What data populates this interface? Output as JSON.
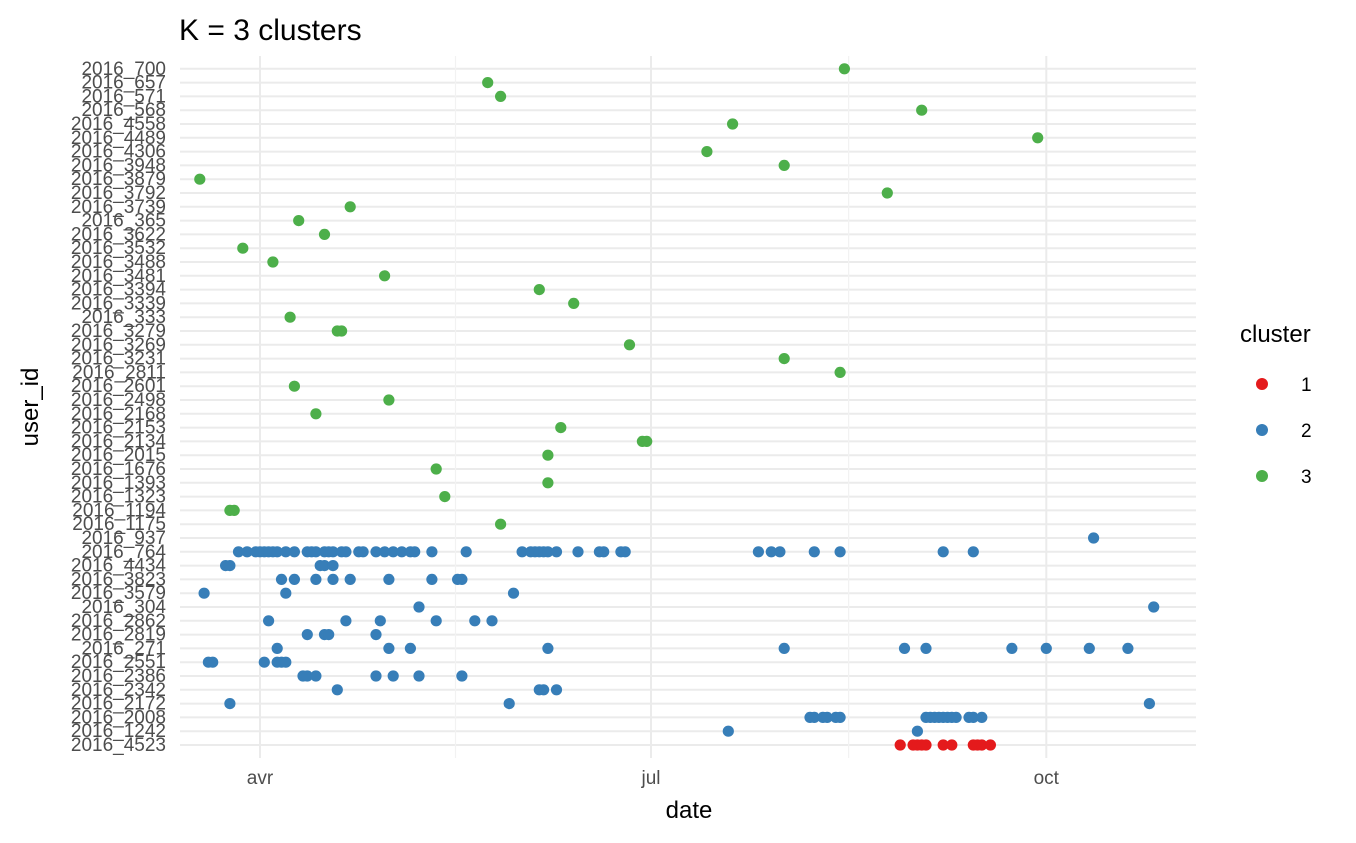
{
  "chart_data": {
    "type": "scatter",
    "title": "K = 3 clusters",
    "xlabel": "date",
    "ylabel": "user_id",
    "grid": true,
    "legend_position": "right",
    "legend_title": "cluster",
    "x_ticks": [
      {
        "date": "2016-04-01",
        "label": "avr"
      },
      {
        "date": "2016-07-01",
        "label": "jul"
      },
      {
        "date": "2016-10-01",
        "label": "oct"
      }
    ],
    "xlim": [
      "2016-03-15",
      "2016-10-30"
    ],
    "categories": [
      "2016_4523",
      "2016_1242",
      "2016_2008",
      "2016_2172",
      "2016_2342",
      "2016_2386",
      "2016_2551",
      "2016_271",
      "2016_2819",
      "2016_2862",
      "2016_304",
      "2016_3579",
      "2016_3823",
      "2016_4434",
      "2016_764",
      "2016_937",
      "2016_1175",
      "2016_1194",
      "2016_1323",
      "2016_1393",
      "2016_1676",
      "2016_2015",
      "2016_2134",
      "2016_2153",
      "2016_2168",
      "2016_2498",
      "2016_2601",
      "2016_2811",
      "2016_3231",
      "2016_3269",
      "2016_3279",
      "2016_333",
      "2016_3339",
      "2016_3394",
      "2016_3481",
      "2016_3488",
      "2016_3532",
      "2016_3622",
      "2016_365",
      "2016_3739",
      "2016_3792",
      "2016_3879",
      "2016_3948",
      "2016_4306",
      "2016_4489",
      "2016_4558",
      "2016_568",
      "2016_571",
      "2016_657",
      "2016_700"
    ],
    "series": [
      {
        "name": "1",
        "color": "#E41A1C",
        "points": [
          {
            "x": "2016-08-28",
            "y": "2016_4523"
          },
          {
            "x": "2016-08-31",
            "y": "2016_4523"
          },
          {
            "x": "2016-09-01",
            "y": "2016_4523"
          },
          {
            "x": "2016-09-02",
            "y": "2016_4523"
          },
          {
            "x": "2016-09-03",
            "y": "2016_4523"
          },
          {
            "x": "2016-09-07",
            "y": "2016_4523"
          },
          {
            "x": "2016-09-09",
            "y": "2016_4523"
          },
          {
            "x": "2016-09-14",
            "y": "2016_4523"
          },
          {
            "x": "2016-09-15",
            "y": "2016_4523"
          },
          {
            "x": "2016-09-16",
            "y": "2016_4523"
          },
          {
            "x": "2016-09-18",
            "y": "2016_4523"
          }
        ]
      },
      {
        "name": "2",
        "color": "#377EB8",
        "points": [
          {
            "x": "2016-07-19",
            "y": "2016_1242"
          },
          {
            "x": "2016-09-01",
            "y": "2016_1242"
          },
          {
            "x": "2016-08-07",
            "y": "2016_2008"
          },
          {
            "x": "2016-08-08",
            "y": "2016_2008"
          },
          {
            "x": "2016-08-10",
            "y": "2016_2008"
          },
          {
            "x": "2016-08-11",
            "y": "2016_2008"
          },
          {
            "x": "2016-08-13",
            "y": "2016_2008"
          },
          {
            "x": "2016-08-14",
            "y": "2016_2008"
          },
          {
            "x": "2016-09-03",
            "y": "2016_2008"
          },
          {
            "x": "2016-09-04",
            "y": "2016_2008"
          },
          {
            "x": "2016-09-05",
            "y": "2016_2008"
          },
          {
            "x": "2016-09-06",
            "y": "2016_2008"
          },
          {
            "x": "2016-09-07",
            "y": "2016_2008"
          },
          {
            "x": "2016-09-08",
            "y": "2016_2008"
          },
          {
            "x": "2016-09-09",
            "y": "2016_2008"
          },
          {
            "x": "2016-09-10",
            "y": "2016_2008"
          },
          {
            "x": "2016-09-13",
            "y": "2016_2008"
          },
          {
            "x": "2016-09-14",
            "y": "2016_2008"
          },
          {
            "x": "2016-09-16",
            "y": "2016_2008"
          },
          {
            "x": "2016-03-25",
            "y": "2016_2172"
          },
          {
            "x": "2016-05-29",
            "y": "2016_2172"
          },
          {
            "x": "2016-10-25",
            "y": "2016_2172"
          },
          {
            "x": "2016-04-19",
            "y": "2016_2342"
          },
          {
            "x": "2016-06-05",
            "y": "2016_2342"
          },
          {
            "x": "2016-06-06",
            "y": "2016_2342"
          },
          {
            "x": "2016-06-09",
            "y": "2016_2342"
          },
          {
            "x": "2016-04-11",
            "y": "2016_2386"
          },
          {
            "x": "2016-04-12",
            "y": "2016_2386"
          },
          {
            "x": "2016-04-14",
            "y": "2016_2386"
          },
          {
            "x": "2016-04-28",
            "y": "2016_2386"
          },
          {
            "x": "2016-05-02",
            "y": "2016_2386"
          },
          {
            "x": "2016-05-08",
            "y": "2016_2386"
          },
          {
            "x": "2016-05-18",
            "y": "2016_2386"
          },
          {
            "x": "2016-03-20",
            "y": "2016_2551"
          },
          {
            "x": "2016-03-21",
            "y": "2016_2551"
          },
          {
            "x": "2016-04-02",
            "y": "2016_2551"
          },
          {
            "x": "2016-04-05",
            "y": "2016_2551"
          },
          {
            "x": "2016-04-06",
            "y": "2016_2551"
          },
          {
            "x": "2016-04-07",
            "y": "2016_2551"
          },
          {
            "x": "2016-04-05",
            "y": "2016_271"
          },
          {
            "x": "2016-05-01",
            "y": "2016_271"
          },
          {
            "x": "2016-05-06",
            "y": "2016_271"
          },
          {
            "x": "2016-06-07",
            "y": "2016_271"
          },
          {
            "x": "2016-08-01",
            "y": "2016_271"
          },
          {
            "x": "2016-08-29",
            "y": "2016_271"
          },
          {
            "x": "2016-09-03",
            "y": "2016_271"
          },
          {
            "x": "2016-09-23",
            "y": "2016_271"
          },
          {
            "x": "2016-10-01",
            "y": "2016_271"
          },
          {
            "x": "2016-10-11",
            "y": "2016_271"
          },
          {
            "x": "2016-10-20",
            "y": "2016_271"
          },
          {
            "x": "2016-04-12",
            "y": "2016_2819"
          },
          {
            "x": "2016-04-16",
            "y": "2016_2819"
          },
          {
            "x": "2016-04-17",
            "y": "2016_2819"
          },
          {
            "x": "2016-04-28",
            "y": "2016_2819"
          },
          {
            "x": "2016-04-03",
            "y": "2016_2862"
          },
          {
            "x": "2016-04-21",
            "y": "2016_2862"
          },
          {
            "x": "2016-04-29",
            "y": "2016_2862"
          },
          {
            "x": "2016-05-12",
            "y": "2016_2862"
          },
          {
            "x": "2016-05-21",
            "y": "2016_2862"
          },
          {
            "x": "2016-05-25",
            "y": "2016_2862"
          },
          {
            "x": "2016-05-08",
            "y": "2016_304"
          },
          {
            "x": "2016-10-26",
            "y": "2016_304"
          },
          {
            "x": "2016-03-19",
            "y": "2016_3579"
          },
          {
            "x": "2016-04-07",
            "y": "2016_3579"
          },
          {
            "x": "2016-05-30",
            "y": "2016_3579"
          },
          {
            "x": "2016-04-06",
            "y": "2016_3823"
          },
          {
            "x": "2016-04-09",
            "y": "2016_3823"
          },
          {
            "x": "2016-04-14",
            "y": "2016_3823"
          },
          {
            "x": "2016-04-18",
            "y": "2016_3823"
          },
          {
            "x": "2016-04-22",
            "y": "2016_3823"
          },
          {
            "x": "2016-05-01",
            "y": "2016_3823"
          },
          {
            "x": "2016-05-11",
            "y": "2016_3823"
          },
          {
            "x": "2016-05-17",
            "y": "2016_3823"
          },
          {
            "x": "2016-05-18",
            "y": "2016_3823"
          },
          {
            "x": "2016-03-24",
            "y": "2016_4434"
          },
          {
            "x": "2016-03-25",
            "y": "2016_4434"
          },
          {
            "x": "2016-04-15",
            "y": "2016_4434"
          },
          {
            "x": "2016-04-16",
            "y": "2016_4434"
          },
          {
            "x": "2016-04-18",
            "y": "2016_4434"
          },
          {
            "x": "2016-03-27",
            "y": "2016_764"
          },
          {
            "x": "2016-03-29",
            "y": "2016_764"
          },
          {
            "x": "2016-03-31",
            "y": "2016_764"
          },
          {
            "x": "2016-04-01",
            "y": "2016_764"
          },
          {
            "x": "2016-04-02",
            "y": "2016_764"
          },
          {
            "x": "2016-04-03",
            "y": "2016_764"
          },
          {
            "x": "2016-04-04",
            "y": "2016_764"
          },
          {
            "x": "2016-04-05",
            "y": "2016_764"
          },
          {
            "x": "2016-04-07",
            "y": "2016_764"
          },
          {
            "x": "2016-04-09",
            "y": "2016_764"
          },
          {
            "x": "2016-04-12",
            "y": "2016_764"
          },
          {
            "x": "2016-04-13",
            "y": "2016_764"
          },
          {
            "x": "2016-04-14",
            "y": "2016_764"
          },
          {
            "x": "2016-04-16",
            "y": "2016_764"
          },
          {
            "x": "2016-04-17",
            "y": "2016_764"
          },
          {
            "x": "2016-04-18",
            "y": "2016_764"
          },
          {
            "x": "2016-04-20",
            "y": "2016_764"
          },
          {
            "x": "2016-04-21",
            "y": "2016_764"
          },
          {
            "x": "2016-04-24",
            "y": "2016_764"
          },
          {
            "x": "2016-04-25",
            "y": "2016_764"
          },
          {
            "x": "2016-04-28",
            "y": "2016_764"
          },
          {
            "x": "2016-04-30",
            "y": "2016_764"
          },
          {
            "x": "2016-05-02",
            "y": "2016_764"
          },
          {
            "x": "2016-05-04",
            "y": "2016_764"
          },
          {
            "x": "2016-05-06",
            "y": "2016_764"
          },
          {
            "x": "2016-05-07",
            "y": "2016_764"
          },
          {
            "x": "2016-05-11",
            "y": "2016_764"
          },
          {
            "x": "2016-05-19",
            "y": "2016_764"
          },
          {
            "x": "2016-06-01",
            "y": "2016_764"
          },
          {
            "x": "2016-06-03",
            "y": "2016_764"
          },
          {
            "x": "2016-06-04",
            "y": "2016_764"
          },
          {
            "x": "2016-06-05",
            "y": "2016_764"
          },
          {
            "x": "2016-06-06",
            "y": "2016_764"
          },
          {
            "x": "2016-06-07",
            "y": "2016_764"
          },
          {
            "x": "2016-06-09",
            "y": "2016_764"
          },
          {
            "x": "2016-06-14",
            "y": "2016_764"
          },
          {
            "x": "2016-06-19",
            "y": "2016_764"
          },
          {
            "x": "2016-06-20",
            "y": "2016_764"
          },
          {
            "x": "2016-06-24",
            "y": "2016_764"
          },
          {
            "x": "2016-06-25",
            "y": "2016_764"
          },
          {
            "x": "2016-07-26",
            "y": "2016_764"
          },
          {
            "x": "2016-07-29",
            "y": "2016_764"
          },
          {
            "x": "2016-07-31",
            "y": "2016_764"
          },
          {
            "x": "2016-08-08",
            "y": "2016_764"
          },
          {
            "x": "2016-08-14",
            "y": "2016_764"
          },
          {
            "x": "2016-09-07",
            "y": "2016_764"
          },
          {
            "x": "2016-09-14",
            "y": "2016_764"
          },
          {
            "x": "2016-10-12",
            "y": "2016_937"
          }
        ]
      },
      {
        "name": "3",
        "color": "#4DAF4A",
        "points": [
          {
            "x": "2016-05-27",
            "y": "2016_1175"
          },
          {
            "x": "2016-03-25",
            "y": "2016_1194"
          },
          {
            "x": "2016-03-26",
            "y": "2016_1194"
          },
          {
            "x": "2016-05-14",
            "y": "2016_1323"
          },
          {
            "x": "2016-06-07",
            "y": "2016_1393"
          },
          {
            "x": "2016-05-12",
            "y": "2016_1676"
          },
          {
            "x": "2016-06-07",
            "y": "2016_2015"
          },
          {
            "x": "2016-06-29",
            "y": "2016_2134"
          },
          {
            "x": "2016-06-30",
            "y": "2016_2134"
          },
          {
            "x": "2016-06-10",
            "y": "2016_2153"
          },
          {
            "x": "2016-04-14",
            "y": "2016_2168"
          },
          {
            "x": "2016-05-01",
            "y": "2016_2498"
          },
          {
            "x": "2016-04-09",
            "y": "2016_2601"
          },
          {
            "x": "2016-08-14",
            "y": "2016_2811"
          },
          {
            "x": "2016-08-01",
            "y": "2016_3231"
          },
          {
            "x": "2016-06-26",
            "y": "2016_3269"
          },
          {
            "x": "2016-04-19",
            "y": "2016_3279"
          },
          {
            "x": "2016-04-20",
            "y": "2016_3279"
          },
          {
            "x": "2016-04-08",
            "y": "2016_333"
          },
          {
            "x": "2016-06-13",
            "y": "2016_3339"
          },
          {
            "x": "2016-06-05",
            "y": "2016_3394"
          },
          {
            "x": "2016-04-30",
            "y": "2016_3481"
          },
          {
            "x": "2016-04-04",
            "y": "2016_3488"
          },
          {
            "x": "2016-03-28",
            "y": "2016_3532"
          },
          {
            "x": "2016-04-16",
            "y": "2016_3622"
          },
          {
            "x": "2016-04-10",
            "y": "2016_365"
          },
          {
            "x": "2016-04-22",
            "y": "2016_3739"
          },
          {
            "x": "2016-08-25",
            "y": "2016_3792"
          },
          {
            "x": "2016-03-18",
            "y": "2016_3879"
          },
          {
            "x": "2016-08-01",
            "y": "2016_3948"
          },
          {
            "x": "2016-07-14",
            "y": "2016_4306"
          },
          {
            "x": "2016-09-29",
            "y": "2016_4489"
          },
          {
            "x": "2016-07-20",
            "y": "2016_4558"
          },
          {
            "x": "2016-09-02",
            "y": "2016_568"
          },
          {
            "x": "2016-05-27",
            "y": "2016_571"
          },
          {
            "x": "2016-05-24",
            "y": "2016_657"
          },
          {
            "x": "2016-08-15",
            "y": "2016_700"
          }
        ]
      }
    ]
  }
}
